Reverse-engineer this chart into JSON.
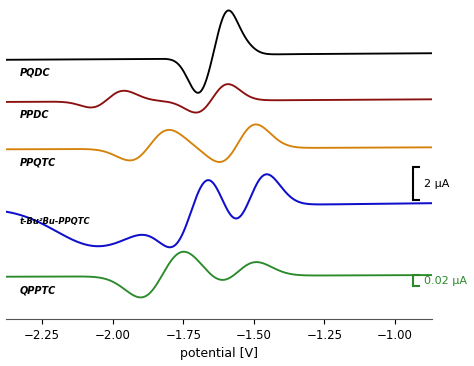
{
  "xlabel": "potential [V]",
  "xlim": [
    -2.38,
    -0.87
  ],
  "xticks": [
    -2.25,
    -2.0,
    -1.75,
    -1.5,
    -1.25,
    -1.0
  ],
  "colors": {
    "black": "#000000",
    "dark_red": "#8B1010",
    "orange": "#D4820A",
    "blue": "#1010CC",
    "green": "#2A8A2A"
  },
  "background": "#FFFFFF",
  "offsets": [
    4.2,
    2.85,
    1.4,
    -0.4,
    -2.5
  ]
}
